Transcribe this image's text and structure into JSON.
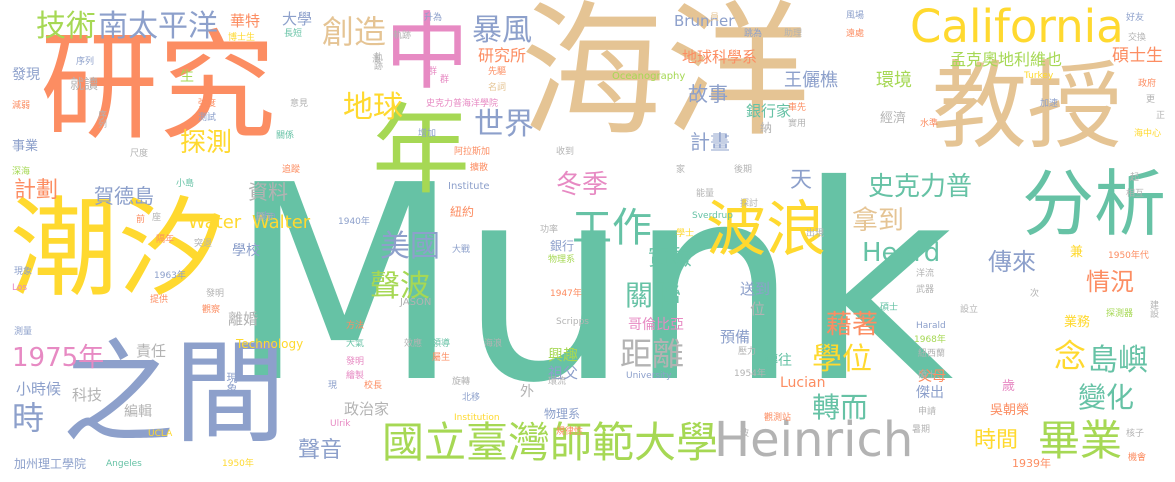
{
  "palette": {
    "teal": "#66c2a5",
    "orange": "#fc8d62",
    "blue": "#8da0cb",
    "pink": "#e78ac3",
    "green": "#a6d854",
    "yellow": "#ffd92f",
    "tan": "#e5c494",
    "gray": "#b3b3b3"
  },
  "words": {
    "munk": "Munk",
    "haiyang": "海洋",
    "yanjiu": "研究",
    "jiaoshou": "教授",
    "chaoxi": "潮汐",
    "zhijian": "之間",
    "zhong": "中",
    "nian": "年",
    "fenxi": "分析",
    "bolang": "波浪",
    "california": "California",
    "heinrich": "Heinrich",
    "ntnu": "國立臺灣師範大學",
    "biye": "畢業",
    "jishu": "技術",
    "nantaipingyang": "南太平洋",
    "chuangzao": "創造",
    "baofeng": "暴風",
    "diqiu": "地球",
    "shijie": "世界",
    "tance": "探測",
    "gongzuo": "工作",
    "meiguo": "美國",
    "shengbo": "聲波",
    "dongji": "冬季",
    "shike": "史克力普",
    "nadao": "拿到",
    "heard": "Heard",
    "chuanlai": "傳來",
    "qingkuang": "情況",
    "nian1975": "1975年",
    "shi": "時",
    "xuewei": "學位",
    "daoyu": "島嶼",
    "bianhua": "變化",
    "zhuaner": "轉而",
    "guanlian": "關聯",
    "juli": "距離",
    "jizhe": "藉著",
    "nian_lian": "念",
    "shiyan": "實驗",
    "shengyin": "聲音",
    "shijian": "時間",
    "jihua1": "計劃",
    "jihua2": "計畫",
    "hededa": "賀德島",
    "ziliao": "資料",
    "water": "Water",
    "walter": "Walter",
    "gushi": "故事",
    "wangliqiao": "王儷樵",
    "huanjing": "環境",
    "yinhangjia": "銀行家",
    "diqiukexue": "地球科學系",
    "yanjiusuo": "研究所",
    "daxue": "大學",
    "huate": "華特",
    "shuoshisheng": "碩士生",
    "mengke": "孟克奧地利維也",
    "brunner": "Brunner",
    "oceanography": "Oceanography",
    "tian": "天",
    "jinji": "經濟",
    "xuexiao": "學校",
    "lihun": "離婚",
    "zeren": "責任",
    "xiaoshihou": "小時候",
    "keji": "科技",
    "bianji": "編輯",
    "zhengzhijia": "政治家",
    "faxian": "發現",
    "jiushu": "就讀",
    "shiye": "事業",
    "sheng": "生",
    "xingqu": "興趣",
    "zufu": "祖父",
    "wai": "外",
    "yinhang": "銀行",
    "wulixi": "物理系",
    "gelunbiya": "哥倫比亞",
    "yubei": "預備",
    "songdao": "送到",
    "wei": "位",
    "zhuanwang": "轉往",
    "lucian": "Lucian",
    "fumu": "父母",
    "jiechu": "傑出",
    "wuchaorong": "吳朝榮",
    "sui": "歲",
    "yewu": "業務",
    "jian": "兼",
    "technology": "Technology",
    "institute": "Institute",
    "institution": "Institution",
    "university": "University",
    "scripps": "Scripps",
    "jason": "JASON",
    "ucla": "UCLA",
    "caltech": "加州理工學院",
    "angeles": "Angeles",
    "nian1950": "1950年",
    "nian1939": "1939年",
    "nian1940": "1940年",
    "nian1947": "1947年",
    "nian1954": "1954年",
    "nian1963": "1963年",
    "nian1968": "1968年",
    "nian1950s": "1950年代",
    "sverdrup": "Sverdrup",
    "john": "John",
    "ulrik": "Ulrik",
    "los": "Los",
    "harald": "Harald",
    "turkey": "Turkey",
    "niuyue": "紐約",
    "boshisheng": "博士生",
    "changduan": "長短",
    "shengwei": "升為",
    "guiji": "軌跡",
    "dongzuo": "動作",
    "yuan": "員",
    "zhuli": "助理",
    "tiaowei": "跳為",
    "fengchang": "風場",
    "yuanchu": "遠處",
    "haoyou": "好友",
    "jiaohuan": "交換",
    "zhengfu": "政府",
    "geng": "更",
    "haizhongxin": "海中心",
    "xuni": "序列",
    "jianruo": "減弱",
    "shenhai": "深海",
    "qiangdu": "強度",
    "chidu": "尺度",
    "guanxi": "關係",
    "zhuizong": "追蹤",
    "xiaodao": "小島",
    "ge": "各",
    "shendu": "深度",
    "ceshi": "測試",
    "yijian": "意見",
    "xianqu": "先驅",
    "mingrenlu": "名詞",
    "shikeli": "史克力普海洋學院",
    "jiasu": "加速",
    "shuizhun": "水準",
    "zengjia": "增加",
    "atuosijia": "阿拉斯加",
    "shoudao": "收到",
    "jiedao": "擴散",
    "jia": "家",
    "houqi": "後期",
    "nengliang": "能量",
    "tantao": "探討",
    "xueshi": "學士",
    "gonglv": "功率",
    "dazhan": "大戰",
    "gesu": "隔年",
    "tuqi": "突退",
    "xianxiang": "現象",
    "tigong": "提供",
    "guancha": "觀察",
    "celiang": "測量",
    "fangfa": "方法",
    "daqi": "大氣",
    "xiaoguo": "效應",
    "lingdao": "領導",
    "shuwei": "屬生",
    "haiyang2": "海浪",
    "xuanzhuan": "旋轉",
    "beipo": "北移",
    "huanliu": "環流",
    "zuo": "座",
    "xianshi": "顯示",
    "faming": "發明",
    "guilvxing": "規律性",
    "xiaozhang": "校長",
    "huizhi": "繪製",
    "shiyong": "實用",
    "chuxian": "出現",
    "wuqi": "武器",
    "sheli": "設立",
    "ci": "次",
    "yangliu": "洋流",
    "shuoshi": "碩士",
    "yali": "壓力",
    "niuxilan": "紐西蘭",
    "tanceqi": "探測器",
    "guancezhan": "觀測站",
    "shuqi": "暑期",
    "shenqing": "申請",
    "bo": "波",
    "hezi": "核子",
    "jihui": "機會",
    "xiangsan": "相互",
    "qi": "起",
    "jianshe": "建設",
    "qiuzhi": "球形",
    "wen": "問",
    "zhongduan": "中斷",
    "xian": "現",
    "qun": "群",
    "qian": "前",
    "zheng": "正",
    "hai": "海",
    "kaimu": "開幕",
    "lvxing": "旅行",
    "na": "納",
    "chexian": "車先"
  }
}
